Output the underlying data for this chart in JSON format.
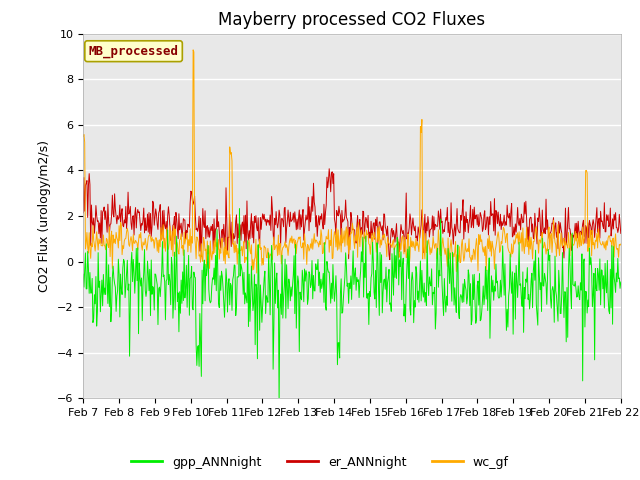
{
  "title": "Mayberry processed CO2 Fluxes",
  "ylabel": "CO2 Flux (urology/m2/s)",
  "ylim": [
    -6,
    10
  ],
  "yticks": [
    -6,
    -4,
    -2,
    0,
    2,
    4,
    6,
    8,
    10
  ],
  "n_days": 15,
  "x_tick_labels": [
    "Feb 7",
    "Feb 8",
    "Feb 9",
    "Feb 10",
    "Feb 11",
    "Feb 12",
    "Feb 13",
    "Feb 14",
    "Feb 15",
    "Feb 16",
    "Feb 17",
    "Feb 18",
    "Feb 19",
    "Feb 20",
    "Feb 21",
    "Feb 22"
  ],
  "legend_label": "MB_processed",
  "legend_label_color": "#880000",
  "legend_box_bg": "#ffffcc",
  "legend_box_edge": "#aaa000",
  "line_colors": {
    "gpp": "#00ee00",
    "er": "#cc0000",
    "wc": "#ffaa00"
  },
  "series_labels": {
    "gpp": "gpp_ANNnight",
    "er": "er_ANNnight",
    "wc": "wc_gf"
  },
  "fig_bg": "#ffffff",
  "plot_bg": "#e8e8e8",
  "title_fontsize": 12,
  "axis_fontsize": 9,
  "tick_fontsize": 8,
  "legend_fontsize": 9
}
